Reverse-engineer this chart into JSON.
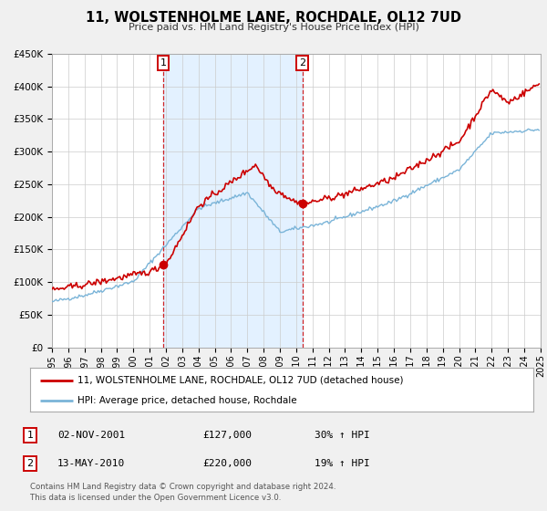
{
  "title": "11, WOLSTENHOLME LANE, ROCHDALE, OL12 7UD",
  "subtitle": "Price paid vs. HM Land Registry's House Price Index (HPI)",
  "legend_line1": "11, WOLSTENHOLME LANE, ROCHDALE, OL12 7UD (detached house)",
  "legend_line2": "HPI: Average price, detached house, Rochdale",
  "table_rows": [
    {
      "num": "1",
      "date": "02-NOV-2001",
      "price": "£127,000",
      "change": "30% ↑ HPI"
    },
    {
      "num": "2",
      "date": "13-MAY-2010",
      "price": "£220,000",
      "change": "19% ↑ HPI"
    }
  ],
  "footnote1": "Contains HM Land Registry data © Crown copyright and database right 2024.",
  "footnote2": "This data is licensed under the Open Government Licence v3.0.",
  "sale1_year": 2001.84,
  "sale1_price": 127000,
  "sale2_year": 2010.37,
  "sale2_price": 220000,
  "hpi_color": "#7ab4d8",
  "price_color": "#cc0000",
  "sale_dot_color": "#cc0000",
  "vline_color": "#cc0000",
  "shade_color": "#ddeeff",
  "ylim_min": 0,
  "ylim_max": 450000,
  "xlim_min": 1995,
  "xlim_max": 2025,
  "yticks": [
    0,
    50000,
    100000,
    150000,
    200000,
    250000,
    300000,
    350000,
    400000,
    450000
  ],
  "ytick_labels": [
    "£0",
    "£50K",
    "£100K",
    "£150K",
    "£200K",
    "£250K",
    "£300K",
    "£350K",
    "£400K",
    "£450K"
  ],
  "xtick_years": [
    1995,
    1996,
    1997,
    1998,
    1999,
    2000,
    2001,
    2002,
    2003,
    2004,
    2005,
    2006,
    2007,
    2008,
    2009,
    2010,
    2011,
    2012,
    2013,
    2014,
    2015,
    2016,
    2017,
    2018,
    2019,
    2020,
    2021,
    2022,
    2023,
    2024,
    2025
  ],
  "background_color": "#f0f0f0",
  "plot_bg_color": "#ffffff",
  "grid_color": "#cccccc",
  "border_color": "#aaaaaa"
}
